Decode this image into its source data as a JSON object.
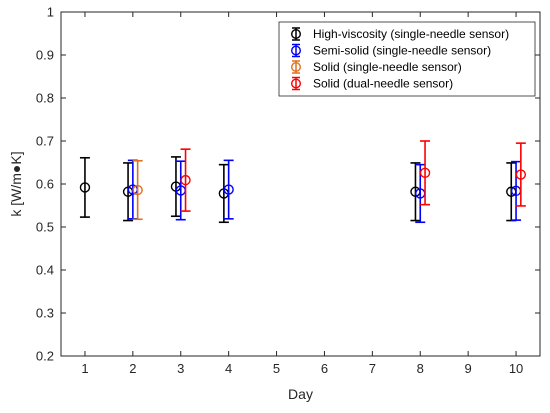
{
  "chart_data": {
    "type": "scatter",
    "title": "",
    "xlabel": "Day",
    "ylabel": "k [W/m●K]",
    "xlim": [
      0.5,
      10.5
    ],
    "ylim": [
      0.2,
      1.0
    ],
    "xticks": [
      "1",
      "2",
      "3",
      "4",
      "5",
      "6",
      "7",
      "8",
      "9",
      "10"
    ],
    "yticks": [
      "0.2",
      "0.3",
      "0.4",
      "0.5",
      "0.6",
      "0.7",
      "0.8",
      "0.9",
      "1"
    ],
    "grid": false,
    "legend_position": "top-right",
    "marker": "open-circle-with-errorbars",
    "series": [
      {
        "name": "High-viscosity (single-needle sensor)",
        "color": "#000000",
        "points": [
          {
            "x": 1,
            "y": 0.592,
            "err": 0.069
          },
          {
            "x": 1.9,
            "y": 0.582,
            "err": 0.067
          },
          {
            "x": 2.9,
            "y": 0.594,
            "err": 0.069
          },
          {
            "x": 3.9,
            "y": 0.578,
            "err": 0.067
          },
          {
            "x": 7.9,
            "y": 0.582,
            "err": 0.067
          },
          {
            "x": 9.9,
            "y": 0.582,
            "err": 0.067
          }
        ]
      },
      {
        "name": "Semi-solid (single-needle sensor)",
        "color": "#0000ff",
        "points": [
          {
            "x": 2.0,
            "y": 0.587,
            "err": 0.068
          },
          {
            "x": 3.0,
            "y": 0.585,
            "err": 0.068
          },
          {
            "x": 4.0,
            "y": 0.587,
            "err": 0.068
          },
          {
            "x": 8.0,
            "y": 0.578,
            "err": 0.067
          },
          {
            "x": 10.0,
            "y": 0.584,
            "err": 0.068
          }
        ]
      },
      {
        "name": "Solid (single-needle sensor)",
        "color": "#e07020",
        "points": [
          {
            "x": 2.1,
            "y": 0.586,
            "err": 0.068
          }
        ]
      },
      {
        "name": "Solid (dual-needle sensor)",
        "color": "#ff0000",
        "points": [
          {
            "x": 3.1,
            "y": 0.609,
            "err": 0.072
          },
          {
            "x": 8.1,
            "y": 0.626,
            "err": 0.074
          },
          {
            "x": 10.1,
            "y": 0.622,
            "err": 0.073
          }
        ]
      }
    ]
  }
}
